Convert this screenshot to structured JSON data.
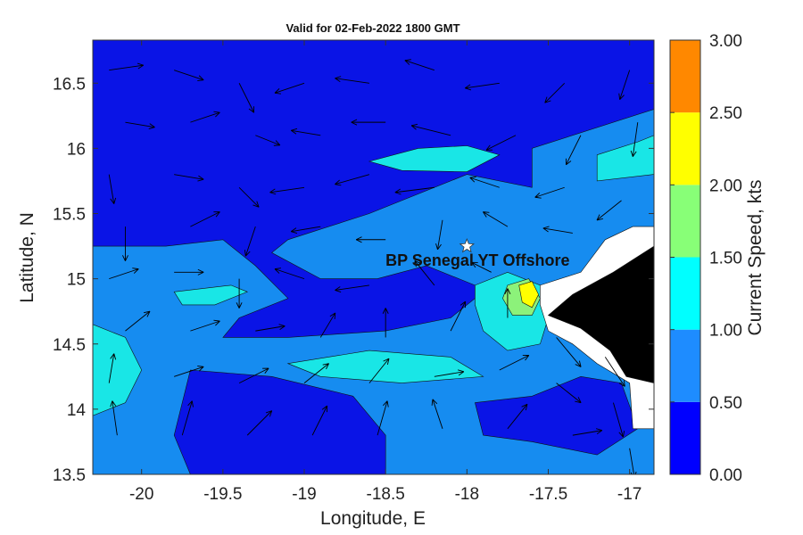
{
  "chart_data": {
    "type": "contour",
    "title": "Valid for 02-Feb-2022 1800 GMT",
    "xlabel": "Longitude, E",
    "ylabel": "Latitude, N",
    "xlim": [
      -20.3,
      -16.85
    ],
    "ylim": [
      13.5,
      16.83
    ],
    "x_ticks": [
      -20,
      -19.5,
      -19,
      -18.5,
      -18,
      -17.5,
      -17
    ],
    "x_tick_labels": [
      "-20",
      "-19.5",
      "-19",
      "-18.5",
      "-18",
      "-17.5",
      "-17"
    ],
    "y_ticks": [
      13.5,
      14,
      14.5,
      15,
      15.5,
      16,
      16.5
    ],
    "y_tick_labels": [
      "13.5",
      "14",
      "14.5",
      "15",
      "15.5",
      "16",
      "16.5"
    ],
    "colorbar": {
      "label": "Current Speed, kts",
      "levels": [
        0.0,
        0.5,
        1.0,
        1.5,
        2.0,
        2.5,
        3.0
      ],
      "tick_labels": [
        "0.00",
        "0.50",
        "1.00",
        "1.50",
        "2.00",
        "2.50",
        "3.00"
      ],
      "colors": [
        "#0000ff",
        "#1e8cff",
        "#00ffff",
        "#88ff77",
        "#ffff00",
        "#ff8800"
      ]
    },
    "fill_colors": {
      "level_0": "#0a14e6",
      "level_1": "#168cf0",
      "level_2": "#19e6e6",
      "level_3": "#8cf27a",
      "level_4": "#ffff00",
      "land": "#000000",
      "no_data": "#ffffff"
    },
    "marker": {
      "label": "BP Senegal YT Offshore",
      "lon": -18.0,
      "lat": 15.25,
      "symbol": "star"
    },
    "regions": [
      {
        "level": 0,
        "description": "low speed areas",
        "polygons": [
          [
            [
              -20.3,
              16.83
            ],
            [
              -16.85,
              16.83
            ],
            [
              -16.85,
              16.3
            ],
            [
              -17.6,
              16.0
            ],
            [
              -17.6,
              15.7
            ],
            [
              -18.0,
              15.8
            ],
            [
              -18.6,
              15.5
            ],
            [
              -19.1,
              15.3
            ],
            [
              -19.2,
              15.2
            ],
            [
              -18.9,
              15.0
            ],
            [
              -18.55,
              15.0
            ],
            [
              -18.25,
              15.1
            ],
            [
              -17.95,
              14.95
            ],
            [
              -17.95,
              14.85
            ],
            [
              -18.1,
              14.7
            ],
            [
              -18.5,
              14.6
            ],
            [
              -19.1,
              14.55
            ],
            [
              -19.5,
              14.55
            ],
            [
              -19.4,
              14.7
            ],
            [
              -19.1,
              14.85
            ],
            [
              -19.3,
              15.1
            ],
            [
              -19.5,
              15.3
            ],
            [
              -19.85,
              15.25
            ],
            [
              -20.3,
              15.25
            ]
          ],
          [
            [
              -19.7,
              14.3
            ],
            [
              -19.2,
              14.25
            ],
            [
              -18.7,
              14.1
            ],
            [
              -18.5,
              13.8
            ],
            [
              -18.5,
              13.5
            ],
            [
              -19.7,
              13.5
            ],
            [
              -19.8,
              13.8
            ]
          ],
          [
            [
              -17.95,
              14.05
            ],
            [
              -17.6,
              14.1
            ],
            [
              -17.3,
              14.25
            ],
            [
              -17.05,
              14.2
            ],
            [
              -16.95,
              13.85
            ],
            [
              -17.2,
              13.65
            ],
            [
              -17.6,
              13.75
            ],
            [
              -17.9,
              13.8
            ]
          ]
        ]
      },
      {
        "level": 2,
        "description": "higher speed patches",
        "polygons": [
          [
            [
              -18.6,
              15.9
            ],
            [
              -18.3,
              16.0
            ],
            [
              -18.0,
              16.02
            ],
            [
              -17.8,
              15.95
            ],
            [
              -18.0,
              15.82
            ],
            [
              -18.4,
              15.83
            ]
          ],
          [
            [
              -19.8,
              14.9
            ],
            [
              -19.45,
              14.95
            ],
            [
              -19.35,
              14.9
            ],
            [
              -19.55,
              14.8
            ],
            [
              -19.75,
              14.8
            ]
          ],
          [
            [
              -19.1,
              14.35
            ],
            [
              -18.6,
              14.45
            ],
            [
              -18.1,
              14.4
            ],
            [
              -17.9,
              14.25
            ],
            [
              -18.4,
              14.2
            ],
            [
              -18.9,
              14.25
            ]
          ],
          [
            [
              -20.3,
              14.65
            ],
            [
              -20.1,
              14.55
            ],
            [
              -20.0,
              14.3
            ],
            [
              -20.1,
              14.05
            ],
            [
              -20.3,
              13.95
            ]
          ],
          [
            [
              -17.95,
              14.95
            ],
            [
              -17.75,
              15.05
            ],
            [
              -17.55,
              14.95
            ],
            [
              -17.5,
              14.7
            ],
            [
              -17.55,
              14.5
            ],
            [
              -17.75,
              14.45
            ],
            [
              -17.9,
              14.6
            ],
            [
              -17.95,
              14.8
            ]
          ],
          [
            [
              -17.2,
              15.95
            ],
            [
              -16.95,
              16.05
            ],
            [
              -16.85,
              16.1
            ],
            [
              -16.85,
              15.8
            ],
            [
              -17.2,
              15.75
            ]
          ]
        ]
      },
      {
        "level": 3,
        "description": "",
        "polygons": [
          [
            [
              -17.75,
              14.95
            ],
            [
              -17.62,
              15.0
            ],
            [
              -17.55,
              14.85
            ],
            [
              -17.6,
              14.72
            ],
            [
              -17.72,
              14.72
            ],
            [
              -17.78,
              14.85
            ]
          ]
        ]
      },
      {
        "level": 4,
        "description": "",
        "polygons": [
          [
            [
              -17.68,
              14.95
            ],
            [
              -17.6,
              14.98
            ],
            [
              -17.56,
              14.88
            ],
            [
              -17.6,
              14.78
            ],
            [
              -17.66,
              14.82
            ]
          ]
        ]
      },
      {
        "level": "no_data",
        "description": "coastal mask",
        "polygons": [
          [
            [
              -17.55,
              14.95
            ],
            [
              -17.3,
              15.05
            ],
            [
              -17.15,
              15.3
            ],
            [
              -16.98,
              15.4
            ],
            [
              -16.85,
              15.4
            ],
            [
              -16.85,
              13.85
            ],
            [
              -16.98,
              13.85
            ],
            [
              -17.0,
              14.2
            ],
            [
              -17.2,
              14.35
            ],
            [
              -17.35,
              14.5
            ],
            [
              -17.5,
              14.6
            ],
            [
              -17.55,
              14.8
            ]
          ]
        ]
      },
      {
        "level": "land",
        "description": "land",
        "polygons": [
          [
            [
              -17.5,
              14.72
            ],
            [
              -17.35,
              14.88
            ],
            [
              -17.1,
              15.05
            ],
            [
              -16.85,
              15.25
            ],
            [
              -16.85,
              14.2
            ],
            [
              -17.02,
              14.25
            ],
            [
              -17.12,
              14.45
            ],
            [
              -17.3,
              14.62
            ]
          ]
        ]
      }
    ],
    "vectors": {
      "units": "kts",
      "samples": [
        {
          "lon": -20.2,
          "lat": 16.6,
          "u": 0.35,
          "v": 0.05
        },
        {
          "lon": -19.8,
          "lat": 16.6,
          "u": 0.3,
          "v": -0.1
        },
        {
          "lon": -19.4,
          "lat": 16.5,
          "u": 0.15,
          "v": -0.3
        },
        {
          "lon": -19.0,
          "lat": 16.5,
          "u": -0.3,
          "v": -0.1
        },
        {
          "lon": -18.6,
          "lat": 16.5,
          "u": -0.35,
          "v": 0.05
        },
        {
          "lon": -18.2,
          "lat": 16.6,
          "u": -0.3,
          "v": 0.1
        },
        {
          "lon": -17.8,
          "lat": 16.5,
          "u": -0.35,
          "v": -0.05
        },
        {
          "lon": -17.4,
          "lat": 16.5,
          "u": -0.2,
          "v": -0.2
        },
        {
          "lon": -17.0,
          "lat": 16.6,
          "u": -0.1,
          "v": -0.3
        },
        {
          "lon": -20.1,
          "lat": 16.2,
          "u": 0.3,
          "v": -0.05
        },
        {
          "lon": -19.7,
          "lat": 16.2,
          "u": 0.3,
          "v": 0.1
        },
        {
          "lon": -19.3,
          "lat": 16.1,
          "u": 0.25,
          "v": -0.1
        },
        {
          "lon": -18.9,
          "lat": 16.1,
          "u": -0.3,
          "v": 0.05
        },
        {
          "lon": -18.5,
          "lat": 16.2,
          "u": -0.35,
          "v": 0.0
        },
        {
          "lon": -18.1,
          "lat": 16.1,
          "u": -0.4,
          "v": 0.1
        },
        {
          "lon": -17.7,
          "lat": 16.1,
          "u": -0.3,
          "v": -0.15
        },
        {
          "lon": -17.3,
          "lat": 16.1,
          "u": -0.15,
          "v": -0.3
        },
        {
          "lon": -16.95,
          "lat": 16.2,
          "u": -0.05,
          "v": -0.35
        },
        {
          "lon": -20.2,
          "lat": 15.8,
          "u": 0.05,
          "v": -0.3
        },
        {
          "lon": -19.8,
          "lat": 15.8,
          "u": 0.3,
          "v": -0.05
        },
        {
          "lon": -19.4,
          "lat": 15.7,
          "u": 0.2,
          "v": -0.2
        },
        {
          "lon": -19.0,
          "lat": 15.7,
          "u": -0.35,
          "v": -0.05
        },
        {
          "lon": -18.6,
          "lat": 15.8,
          "u": -0.35,
          "v": -0.1
        },
        {
          "lon": -18.2,
          "lat": 15.7,
          "u": -0.4,
          "v": -0.05
        },
        {
          "lon": -17.8,
          "lat": 15.7,
          "u": -0.3,
          "v": 0.1
        },
        {
          "lon": -17.4,
          "lat": 15.7,
          "u": -0.3,
          "v": -0.1
        },
        {
          "lon": -17.05,
          "lat": 15.6,
          "u": -0.25,
          "v": -0.2
        },
        {
          "lon": -20.1,
          "lat": 15.4,
          "u": 0.0,
          "v": -0.35
        },
        {
          "lon": -19.7,
          "lat": 15.4,
          "u": 0.3,
          "v": 0.15
        },
        {
          "lon": -19.3,
          "lat": 15.4,
          "u": -0.1,
          "v": -0.3
        },
        {
          "lon": -18.9,
          "lat": 15.4,
          "u": -0.3,
          "v": -0.05
        },
        {
          "lon": -18.5,
          "lat": 15.3,
          "u": -0.3,
          "v": 0.0
        },
        {
          "lon": -18.15,
          "lat": 15.45,
          "u": -0.05,
          "v": -0.3
        },
        {
          "lon": -17.75,
          "lat": 15.4,
          "u": -0.25,
          "v": 0.15
        },
        {
          "lon": -17.35,
          "lat": 15.35,
          "u": -0.3,
          "v": 0.05
        },
        {
          "lon": -20.2,
          "lat": 15.0,
          "u": 0.3,
          "v": 0.1
        },
        {
          "lon": -19.8,
          "lat": 15.05,
          "u": 0.3,
          "v": 0.0
        },
        {
          "lon": -19.4,
          "lat": 15.0,
          "u": 0.0,
          "v": -0.3
        },
        {
          "lon": -19.0,
          "lat": 15.0,
          "u": -0.3,
          "v": 0.1
        },
        {
          "lon": -18.6,
          "lat": 14.95,
          "u": -0.35,
          "v": -0.05
        },
        {
          "lon": -18.2,
          "lat": 14.95,
          "u": -0.2,
          "v": 0.25
        },
        {
          "lon": -17.85,
          "lat": 15.05,
          "u": -0.2,
          "v": 0.1
        },
        {
          "lon": -20.1,
          "lat": 14.6,
          "u": 0.25,
          "v": 0.2
        },
        {
          "lon": -19.7,
          "lat": 14.6,
          "u": 0.3,
          "v": 0.1
        },
        {
          "lon": -19.3,
          "lat": 14.6,
          "u": 0.3,
          "v": 0.05
        },
        {
          "lon": -18.9,
          "lat": 14.55,
          "u": 0.15,
          "v": 0.25
        },
        {
          "lon": -18.5,
          "lat": 14.55,
          "u": 0.0,
          "v": 0.3
        },
        {
          "lon": -18.1,
          "lat": 14.6,
          "u": 0.15,
          "v": 0.3
        },
        {
          "lon": -17.75,
          "lat": 14.7,
          "u": 0.0,
          "v": 0.3
        },
        {
          "lon": -17.45,
          "lat": 14.55,
          "u": 0.25,
          "v": -0.3
        },
        {
          "lon": -17.15,
          "lat": 14.4,
          "u": 0.2,
          "v": -0.3
        },
        {
          "lon": -20.2,
          "lat": 14.2,
          "u": 0.05,
          "v": 0.3
        },
        {
          "lon": -19.8,
          "lat": 14.25,
          "u": 0.3,
          "v": 0.1
        },
        {
          "lon": -19.4,
          "lat": 14.2,
          "u": 0.3,
          "v": 0.15
        },
        {
          "lon": -19.0,
          "lat": 14.2,
          "u": 0.25,
          "v": 0.2
        },
        {
          "lon": -18.6,
          "lat": 14.2,
          "u": 0.2,
          "v": 0.25
        },
        {
          "lon": -18.2,
          "lat": 14.25,
          "u": 0.3,
          "v": 0.05
        },
        {
          "lon": -17.8,
          "lat": 14.3,
          "u": 0.3,
          "v": 0.15
        },
        {
          "lon": -17.45,
          "lat": 14.2,
          "u": 0.25,
          "v": -0.2
        },
        {
          "lon": -17.1,
          "lat": 14.05,
          "u": 0.1,
          "v": -0.35
        },
        {
          "lon": -20.15,
          "lat": 13.8,
          "u": -0.05,
          "v": 0.35
        },
        {
          "lon": -19.75,
          "lat": 13.8,
          "u": 0.1,
          "v": 0.35
        },
        {
          "lon": -19.35,
          "lat": 13.8,
          "u": 0.25,
          "v": 0.25
        },
        {
          "lon": -18.95,
          "lat": 13.8,
          "u": 0.15,
          "v": 0.3
        },
        {
          "lon": -18.55,
          "lat": 13.8,
          "u": 0.1,
          "v": 0.35
        },
        {
          "lon": -18.15,
          "lat": 13.85,
          "u": -0.1,
          "v": 0.3
        },
        {
          "lon": -17.75,
          "lat": 13.85,
          "u": 0.2,
          "v": 0.25
        },
        {
          "lon": -17.35,
          "lat": 13.8,
          "u": 0.3,
          "v": 0.05
        },
        {
          "lon": -17.0,
          "lat": 13.7,
          "u": 0.05,
          "v": -0.3
        }
      ]
    }
  }
}
